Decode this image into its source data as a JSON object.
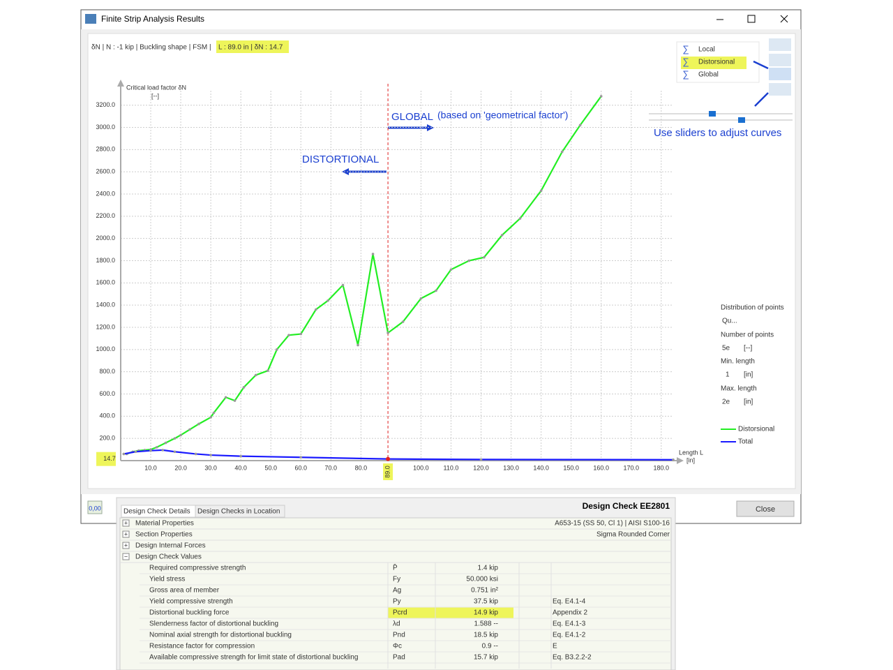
{
  "window": {
    "title": "Finite Strip Analysis Results",
    "close": "Close",
    "status_value": "0,00"
  },
  "header": {
    "info": "δN | N : -1 kip | Buckling shape | FSM |",
    "highlight": "L : 89.0 in | δN : 14.7"
  },
  "curves": {
    "items": [
      "Local",
      "Distorsional",
      "Global"
    ],
    "selected": 1
  },
  "settings": {
    "distribution_label": "Distribution of points",
    "distribution_value": "Qu...",
    "points_label": "Number of points",
    "points_value": "5e",
    "points_unit": "[--]",
    "min_label": "Min. length",
    "min_value": "1",
    "min_unit": "[in]",
    "max_label": "Max. length",
    "max_value": "2e",
    "max_unit": "[in]"
  },
  "chart_data": {
    "type": "line",
    "y_label": "Critical load factor δN",
    "y_unit": "[--]",
    "x_label": "Length L",
    "x_unit": "[in]",
    "xlim": [
      0,
      184
    ],
    "ylim": [
      0,
      3330
    ],
    "grid": true,
    "xticks": [
      {
        "value": 10,
        "label": "10.0"
      },
      {
        "value": 20,
        "label": "20.0"
      },
      {
        "value": 30,
        "label": "30.0"
      },
      {
        "value": 40,
        "label": "40.0"
      },
      {
        "value": 50,
        "label": "50.0"
      },
      {
        "value": 60,
        "label": "60.0"
      },
      {
        "value": 70,
        "label": "70.0"
      },
      {
        "value": 80,
        "label": "80.0"
      },
      {
        "value": 100,
        "label": "100.0"
      },
      {
        "value": 110,
        "label": "110.0"
      },
      {
        "value": 120,
        "label": "120.0"
      },
      {
        "value": 130,
        "label": "130.0"
      },
      {
        "value": 140,
        "label": "140.0"
      },
      {
        "value": 150,
        "label": "150.0"
      },
      {
        "value": 160,
        "label": "160.0"
      },
      {
        "value": 170,
        "label": "170.0"
      },
      {
        "value": 180,
        "label": "180.0"
      }
    ],
    "yticks": [
      {
        "value": 200,
        "label": "200.0"
      },
      {
        "value": 400,
        "label": "400.0"
      },
      {
        "value": 600,
        "label": "600.0"
      },
      {
        "value": 800,
        "label": "800.0"
      },
      {
        "value": 1000,
        "label": "1000.0"
      },
      {
        "value": 1200,
        "label": "1200.0"
      },
      {
        "value": 1400,
        "label": "1400.0"
      },
      {
        "value": 1600,
        "label": "1600.0"
      },
      {
        "value": 1800,
        "label": "1800.0"
      },
      {
        "value": 2000,
        "label": "2000.0"
      },
      {
        "value": 2200,
        "label": "2200.0"
      },
      {
        "value": 2400,
        "label": "2400.0"
      },
      {
        "value": 2600,
        "label": "2600.0"
      },
      {
        "value": 2800,
        "label": "2800.0"
      },
      {
        "value": 3000,
        "label": "3000.0"
      },
      {
        "value": 3200,
        "label": "3200.0"
      }
    ],
    "marker_x": {
      "value": 89,
      "label": "89.0"
    },
    "marker_y": {
      "value": 14.7,
      "label": "14.7"
    },
    "series": [
      {
        "name": "Distorsional",
        "color": "#22ee22",
        "x": [
          2,
          4,
          6,
          8,
          10,
          12,
          15,
          18,
          20,
          23,
          26,
          30,
          31,
          35,
          38,
          41,
          45,
          49,
          52,
          56,
          60,
          65,
          69,
          74,
          79,
          84,
          89,
          94,
          100,
          105,
          110,
          116,
          121,
          127,
          133,
          140,
          147,
          153,
          160
        ],
        "values": [
          60,
          80,
          90,
          95,
          100,
          120,
          160,
          200,
          230,
          280,
          330,
          390,
          430,
          570,
          540,
          660,
          770,
          810,
          1000,
          1130,
          1140,
          1360,
          1440,
          1580,
          1040,
          1860,
          1150,
          1250,
          1460,
          1530,
          1720,
          1800,
          1830,
          2030,
          2180,
          2430,
          2780,
          3020,
          3280
        ]
      },
      {
        "name": "Total",
        "color": "#1a1aff",
        "x": [
          1,
          5,
          10,
          14,
          18,
          25,
          30,
          40,
          60,
          89,
          120,
          184
        ],
        "values": [
          60,
          80,
          90,
          95,
          80,
          60,
          50,
          40,
          30,
          14.7,
          10,
          8
        ]
      }
    ],
    "annotations": [
      "GLOBAL",
      "(based on 'geometrical factor')",
      "DISTORTIONAL",
      "Use sliders to adjust curves"
    ]
  },
  "table": {
    "tabs": [
      "Design Check Details",
      "Design Checks in Location"
    ],
    "title": "Design Check EE2801",
    "sections": [
      [
        "Material Properties",
        "A653-15 (SS 50, Cl 1) | AISI S100-16"
      ],
      [
        "Section Properties",
        "Sigma Rounded Corner"
      ],
      [
        "Design Internal Forces",
        ""
      ],
      [
        "Design Check Values",
        ""
      ]
    ],
    "rows": [
      [
        "Required compressive strength",
        "P̄",
        "1.4 kip",
        ""
      ],
      [
        "Yield stress",
        "Fy",
        "50.000 ksi",
        ""
      ],
      [
        "Gross area of member",
        "Ag",
        "0.751 in²",
        ""
      ],
      [
        "Yield compressive strength",
        "Py",
        "37.5 kip",
        "Eq. E4.1-4"
      ],
      [
        "Distortional buckling force",
        "Pcrd",
        "14.9 kip",
        "Appendix 2"
      ],
      [
        "Slenderness factor of distortional buckling",
        "λd",
        "1.588 --",
        "Eq. E4.1-3"
      ],
      [
        "Nominal axial strength for distortional buckling",
        "Pnd",
        "18.5 kip",
        "Eq. E4.1-2"
      ],
      [
        "Resistance factor for compression",
        "Φc",
        "0.9 --",
        "E"
      ],
      [
        "Available compressive strength for limit state of distortional buckling",
        "Pad",
        "15.7 kip",
        "Eq. B3.2.2-2"
      ]
    ]
  }
}
